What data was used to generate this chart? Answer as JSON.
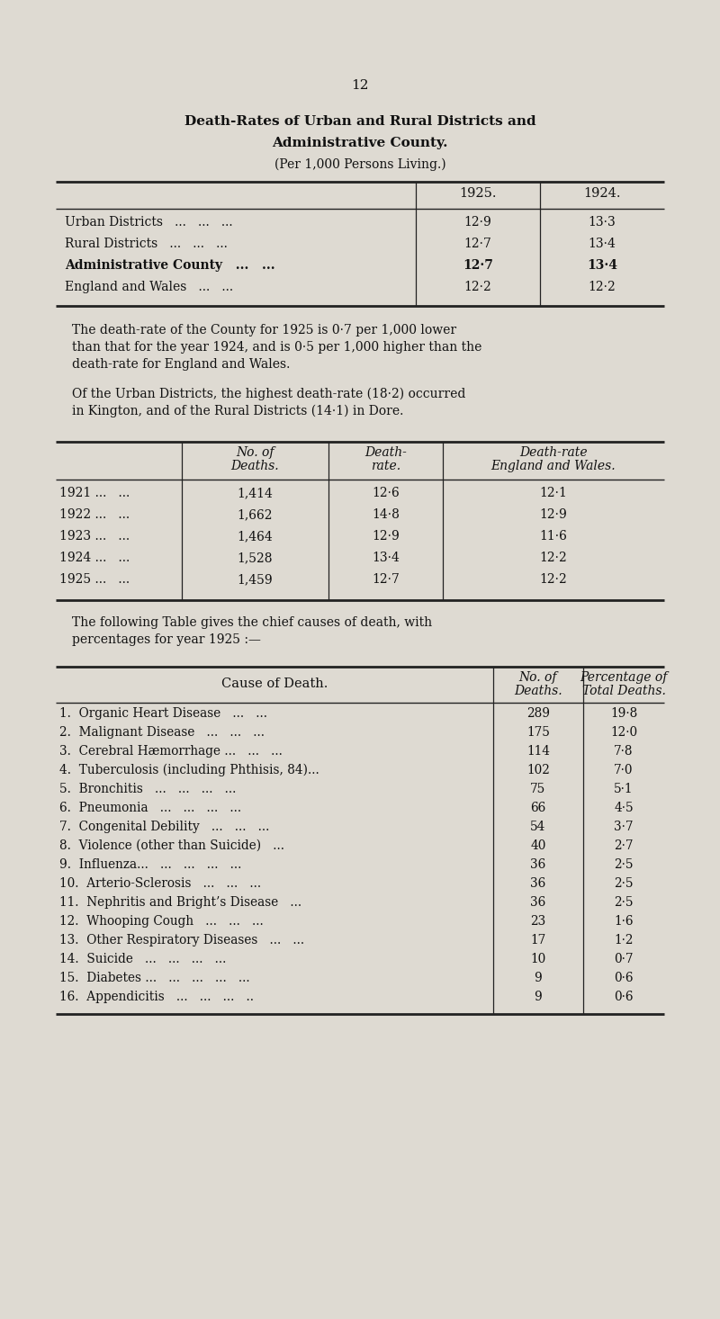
{
  "page_number": "12",
  "title_line1": "Death-Rates of Urban and Rural Districts and",
  "title_line2": "Administrative County.",
  "title_line3": "(Per 1,000 Persons Living.)",
  "bg_color": "#dedad2",
  "text_color": "#111111",
  "table1_rows": [
    [
      "Urban Districts   ...   ...   ...",
      "12·9",
      "13·3",
      false
    ],
    [
      "Rural Districts   ...   ...   ...",
      "12·7",
      "13·4",
      false
    ],
    [
      "Administrative County   ...   ...",
      "12·7",
      "13·4",
      true
    ],
    [
      "England and Wales   ...   ...",
      "12·2",
      "12·2",
      false
    ]
  ],
  "para1_lines": [
    "The death-rate of the County for 1925 is 0·7 per 1,000 lower",
    "than that for the year 1924, and is 0·5 per 1,000 higher than the",
    "death-rate for England and Wales."
  ],
  "para2_lines": [
    "Of the Urban Districts, the highest death-rate (18·2) occurred",
    "in Kington, and of the Rural Districts (14·1) in Dore."
  ],
  "table2_rows": [
    [
      "1921 ...   ...",
      "1,414",
      "12·6",
      "12·1"
    ],
    [
      "1922 ...   ...",
      "1,662",
      "14·8",
      "12·9"
    ],
    [
      "1923 ...   ...",
      "1,464",
      "12·9",
      "11·6"
    ],
    [
      "1924 ...   ...",
      "1,528",
      "13·4",
      "12·2"
    ],
    [
      "1925 ...   ...",
      "1,459",
      "12·7",
      "12·2"
    ]
  ],
  "para3_lines": [
    "The following Table gives the chief causes of death, with",
    "percentages for year 1925 :—"
  ],
  "table3_rows": [
    [
      "1.  Organic Heart Disease   ...   ...",
      "289",
      "19·8"
    ],
    [
      "2.  Malignant Disease   ...   ...   ...",
      "175",
      "12·0"
    ],
    [
      "3.  Cerebral Hæmorrhage ...   ...   ...",
      "114",
      "7·8"
    ],
    [
      "4.  Tuberculosis (including Phthisis, 84)...",
      "102",
      "7·0"
    ],
    [
      "5.  Bronchitis   ...   ...   ...   ...",
      "75",
      "5·1"
    ],
    [
      "6.  Pneumonia   ...   ...   ...   ...",
      "66",
      "4·5"
    ],
    [
      "7.  Congenital Debility   ...   ...   ...",
      "54",
      "3·7"
    ],
    [
      "8.  Violence (other than Suicide)   ...",
      "40",
      "2·7"
    ],
    [
      "9.  Influenza...   ...   ...   ...   ...",
      "36",
      "2·5"
    ],
    [
      "10.  Arterio-Sclerosis   ...   ...   ...",
      "36",
      "2·5"
    ],
    [
      "11.  Nephritis and Bright’s Disease   ...",
      "36",
      "2·5"
    ],
    [
      "12.  Whooping Cough   ...   ...   ...",
      "23",
      "1·6"
    ],
    [
      "13.  Other Respiratory Diseases   ...   ...",
      "17",
      "1·2"
    ],
    [
      "14.  Suicide   ...   ...   ...   ...",
      "10",
      "0·7"
    ],
    [
      "15.  Diabetes ...   ...   ...   ...   ...",
      "9",
      "0·6"
    ],
    [
      "16.  Appendicitis   ...   ...   ...   ..",
      "9",
      "0·6"
    ]
  ]
}
